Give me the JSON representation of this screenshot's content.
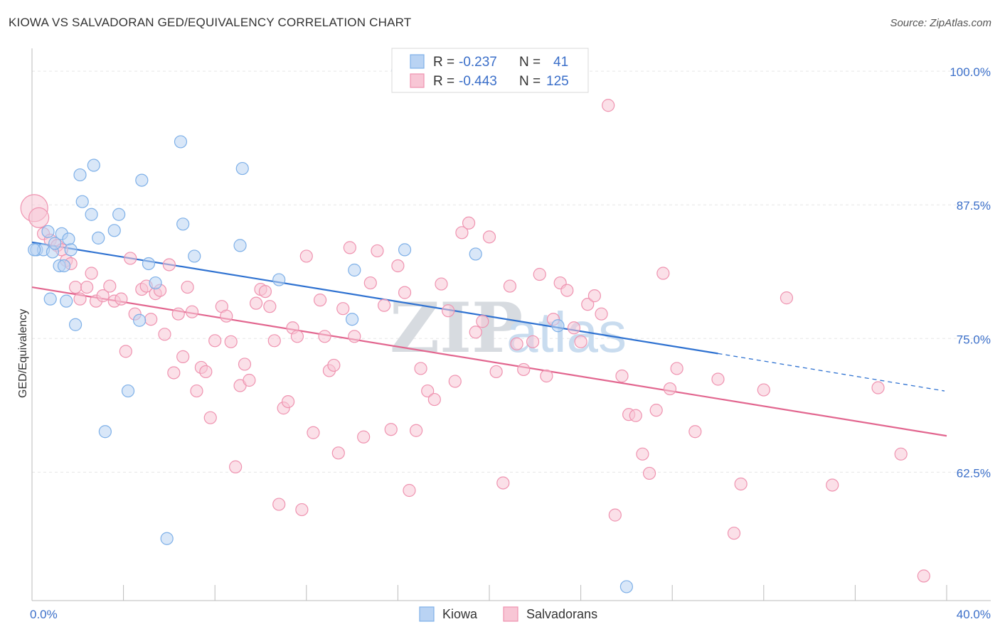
{
  "header": {
    "title": "KIOWA VS SALVADORAN GED/EQUIVALENCY CORRELATION CHART",
    "source": "Source: ZipAtlas.com"
  },
  "legend": {
    "r_label": "R =",
    "n_label": "N =",
    "series": [
      {
        "r": "-0.237",
        "n": "41",
        "color": "#7eb0e8",
        "fill": "#b9d3f3"
      },
      {
        "r": "-0.443",
        "n": "125",
        "color": "#ef93b0",
        "fill": "#f8c6d5"
      }
    ]
  },
  "watermark": {
    "zip": "ZIP",
    "atlas": "atlas"
  },
  "chart_data": {
    "type": "scatter",
    "title": "KIOWA VS SALVADORAN GED/EQUIVALENCY CORRELATION CHART",
    "xlabel": "",
    "ylabel": "GED/Equivalency",
    "xlim": [
      0,
      40
    ],
    "ylim": [
      50.5,
      102
    ],
    "x_tick_labels": [
      "0.0%",
      "40.0%"
    ],
    "y_ticks": [
      62.5,
      75.0,
      87.5,
      100.0
    ],
    "y_tick_labels": [
      "62.5%",
      "75.0%",
      "87.5%",
      "100.0%"
    ],
    "grid": true,
    "legend_position": "bottom-center",
    "series": [
      {
        "name": "Kiowa",
        "color": "#7eb0e8",
        "fill": "#b9d3f3",
        "trend": {
          "x0": 0,
          "y0": 84.0,
          "x1": 30,
          "y1": 73.6,
          "dash_to_x": 40,
          "dash_to_y": 70.1
        },
        "points": [
          [
            0.2,
            83.3
          ],
          [
            0.5,
            83.3
          ],
          [
            0.7,
            85.0
          ],
          [
            0.8,
            78.7
          ],
          [
            0.9,
            83.1
          ],
          [
            1.0,
            83.9
          ],
          [
            1.2,
            81.8
          ],
          [
            1.3,
            84.8
          ],
          [
            1.4,
            81.8
          ],
          [
            1.5,
            78.5
          ],
          [
            1.6,
            84.3
          ],
          [
            1.7,
            83.3
          ],
          [
            1.9,
            76.3
          ],
          [
            2.1,
            90.3
          ],
          [
            2.2,
            87.8
          ],
          [
            2.6,
            86.6
          ],
          [
            2.7,
            91.2
          ],
          [
            2.9,
            84.4
          ],
          [
            3.2,
            66.3
          ],
          [
            3.6,
            85.1
          ],
          [
            3.8,
            86.6
          ],
          [
            4.2,
            70.1
          ],
          [
            4.7,
            76.7
          ],
          [
            4.8,
            89.8
          ],
          [
            5.1,
            82.0
          ],
          [
            5.4,
            80.2
          ],
          [
            5.9,
            56.3
          ],
          [
            6.5,
            93.4
          ],
          [
            6.6,
            85.7
          ],
          [
            7.1,
            82.7
          ],
          [
            9.1,
            83.7
          ],
          [
            9.2,
            90.9
          ],
          [
            10.8,
            80.5
          ],
          [
            14.0,
            76.8
          ],
          [
            14.1,
            81.4
          ],
          [
            16.3,
            83.3
          ],
          [
            19.4,
            82.9
          ],
          [
            23.0,
            76.2
          ],
          [
            26.0,
            51.8
          ],
          [
            0.1,
            83.3
          ],
          [
            16.0,
            100.1
          ]
        ]
      },
      {
        "name": "Salvadorans",
        "color": "#ef93b0",
        "fill": "#f8c6d5",
        "trend": {
          "x0": 0,
          "y0": 79.8,
          "x1": 40,
          "y1": 65.9
        },
        "points": [
          [
            0.1,
            87.2
          ],
          [
            0.3,
            86.3
          ],
          [
            0.5,
            84.8
          ],
          [
            0.8,
            84.2
          ],
          [
            1.1,
            83.7
          ],
          [
            1.3,
            83.3
          ],
          [
            1.5,
            82.3
          ],
          [
            1.7,
            82.0
          ],
          [
            1.9,
            79.8
          ],
          [
            2.1,
            78.7
          ],
          [
            2.4,
            79.8
          ],
          [
            2.6,
            81.1
          ],
          [
            2.8,
            78.5
          ],
          [
            3.1,
            79.0
          ],
          [
            3.4,
            79.9
          ],
          [
            3.6,
            78.5
          ],
          [
            3.9,
            78.7
          ],
          [
            4.1,
            73.8
          ],
          [
            4.3,
            82.5
          ],
          [
            4.5,
            77.3
          ],
          [
            4.8,
            79.6
          ],
          [
            5.0,
            79.9
          ],
          [
            5.2,
            76.8
          ],
          [
            5.4,
            79.2
          ],
          [
            5.6,
            79.5
          ],
          [
            5.8,
            75.4
          ],
          [
            6.0,
            81.9
          ],
          [
            6.2,
            71.8
          ],
          [
            6.4,
            77.3
          ],
          [
            6.6,
            73.3
          ],
          [
            6.8,
            79.8
          ],
          [
            7.0,
            77.5
          ],
          [
            7.2,
            70.1
          ],
          [
            7.4,
            72.3
          ],
          [
            7.6,
            71.9
          ],
          [
            7.8,
            67.6
          ],
          [
            8.0,
            74.8
          ],
          [
            8.3,
            78.0
          ],
          [
            8.5,
            77.1
          ],
          [
            8.7,
            74.7
          ],
          [
            8.9,
            63.0
          ],
          [
            9.1,
            70.6
          ],
          [
            9.3,
            72.6
          ],
          [
            9.5,
            71.1
          ],
          [
            9.8,
            78.3
          ],
          [
            10.0,
            79.6
          ],
          [
            10.2,
            79.4
          ],
          [
            10.4,
            78.0
          ],
          [
            10.6,
            74.8
          ],
          [
            10.8,
            59.5
          ],
          [
            11.0,
            68.5
          ],
          [
            11.2,
            69.1
          ],
          [
            11.4,
            76.0
          ],
          [
            11.6,
            75.2
          ],
          [
            11.8,
            59.0
          ],
          [
            12.0,
            82.7
          ],
          [
            12.3,
            66.2
          ],
          [
            12.6,
            78.6
          ],
          [
            12.8,
            75.2
          ],
          [
            13.0,
            72.0
          ],
          [
            13.2,
            72.5
          ],
          [
            13.4,
            64.3
          ],
          [
            13.6,
            77.8
          ],
          [
            13.9,
            83.5
          ],
          [
            14.1,
            75.2
          ],
          [
            14.5,
            65.8
          ],
          [
            14.8,
            80.2
          ],
          [
            15.1,
            83.2
          ],
          [
            15.4,
            78.1
          ],
          [
            15.7,
            66.5
          ],
          [
            16.0,
            81.8
          ],
          [
            16.3,
            79.3
          ],
          [
            16.5,
            60.8
          ],
          [
            16.8,
            66.4
          ],
          [
            17.0,
            72.2
          ],
          [
            17.3,
            70.1
          ],
          [
            17.6,
            69.3
          ],
          [
            17.9,
            80.1
          ],
          [
            18.2,
            77.6
          ],
          [
            18.5,
            71.0
          ],
          [
            18.8,
            84.9
          ],
          [
            19.1,
            85.8
          ],
          [
            19.4,
            75.6
          ],
          [
            19.7,
            76.6
          ],
          [
            20.0,
            84.5
          ],
          [
            20.3,
            71.9
          ],
          [
            20.6,
            61.5
          ],
          [
            20.9,
            79.9
          ],
          [
            21.2,
            74.5
          ],
          [
            21.5,
            72.1
          ],
          [
            21.9,
            74.7
          ],
          [
            22.2,
            81.0
          ],
          [
            22.5,
            71.5
          ],
          [
            22.8,
            76.8
          ],
          [
            23.1,
            80.2
          ],
          [
            23.4,
            79.5
          ],
          [
            23.7,
            76.0
          ],
          [
            24.0,
            74.7
          ],
          [
            24.3,
            78.2
          ],
          [
            24.6,
            79.0
          ],
          [
            24.9,
            77.3
          ],
          [
            25.2,
            96.8
          ],
          [
            25.5,
            58.5
          ],
          [
            25.8,
            71.5
          ],
          [
            26.1,
            67.9
          ],
          [
            26.4,
            67.8
          ],
          [
            26.7,
            64.2
          ],
          [
            27.0,
            62.4
          ],
          [
            27.3,
            68.3
          ],
          [
            27.6,
            81.1
          ],
          [
            27.9,
            70.3
          ],
          [
            28.2,
            72.2
          ],
          [
            29.0,
            66.3
          ],
          [
            30.0,
            71.2
          ],
          [
            30.7,
            56.8
          ],
          [
            31.0,
            61.4
          ],
          [
            32.0,
            70.2
          ],
          [
            33.0,
            78.8
          ],
          [
            35.0,
            61.3
          ],
          [
            37.0,
            70.4
          ],
          [
            38.0,
            64.2
          ],
          [
            39.0,
            52.8
          ]
        ]
      }
    ]
  }
}
